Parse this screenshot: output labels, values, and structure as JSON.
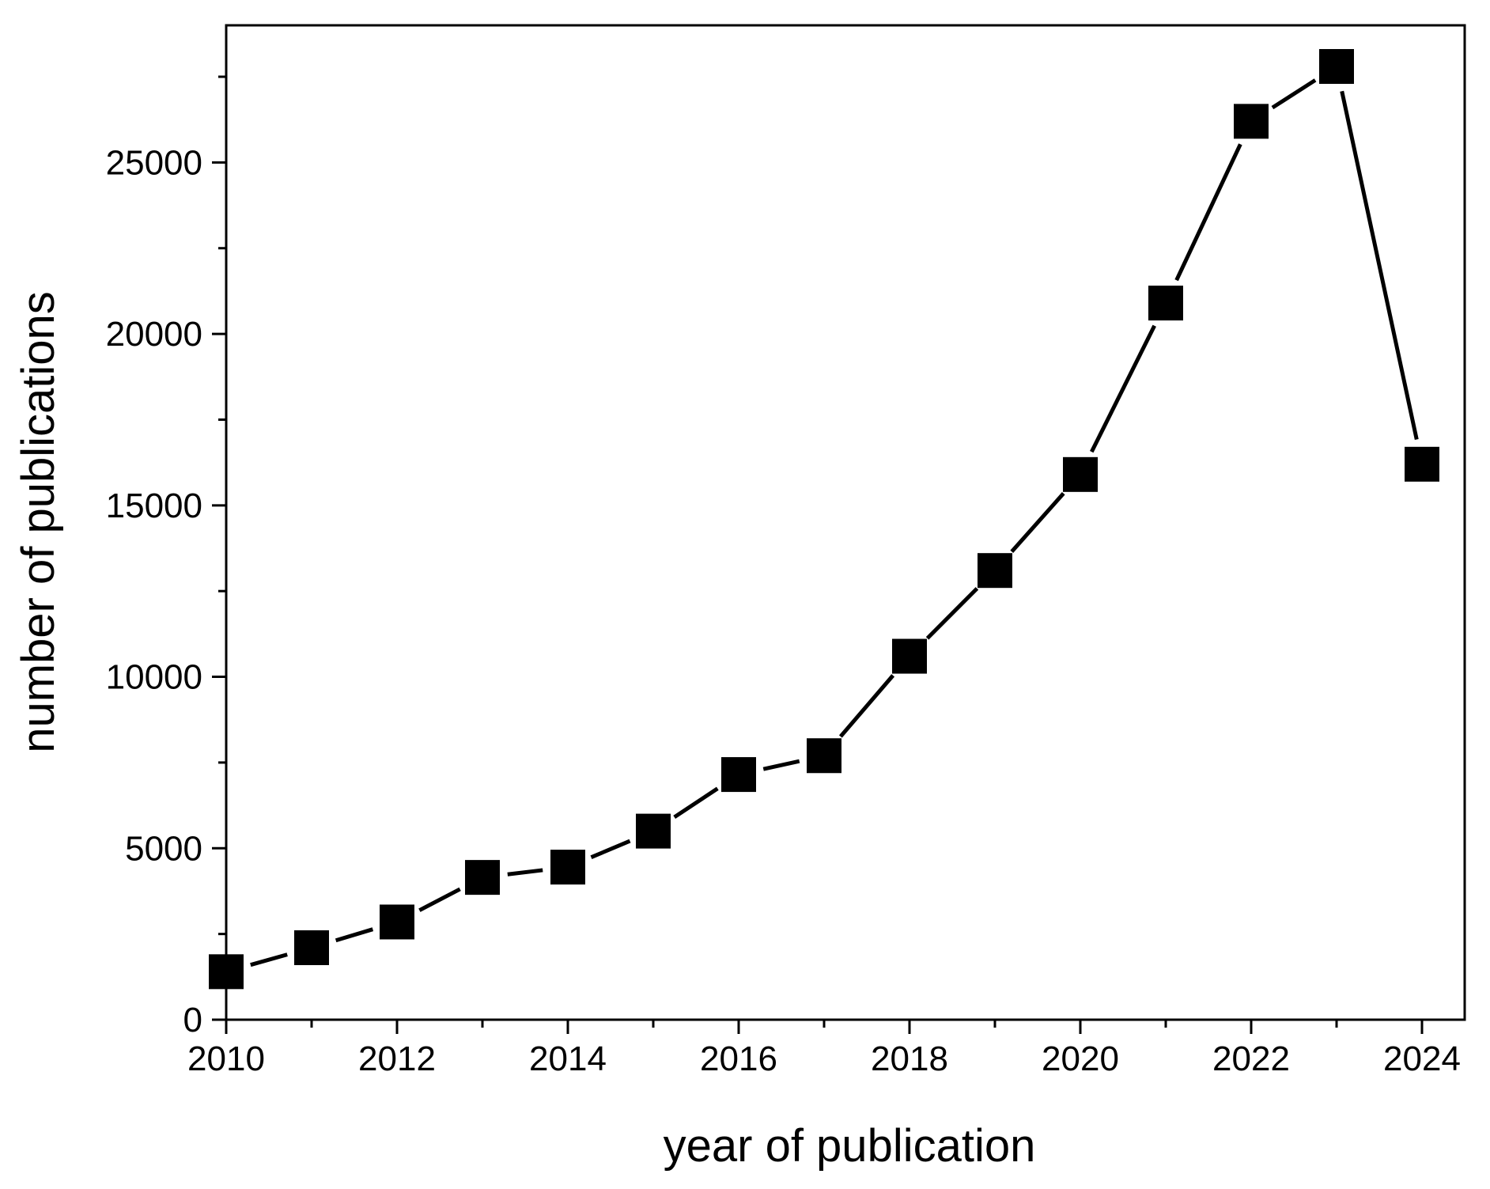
{
  "chart_data": {
    "type": "line",
    "xlabel": "year of publication",
    "ylabel": "number of publications",
    "xlim": [
      2010,
      2024.5
    ],
    "ylim": [
      0,
      29000
    ],
    "x_ticks": [
      2010,
      2012,
      2014,
      2016,
      2018,
      2020,
      2022,
      2024
    ],
    "x_tick_labels": [
      "2010",
      "2012",
      "2014",
      "2016",
      "2018",
      "2020",
      "2022",
      "2024"
    ],
    "y_ticks": [
      0,
      5000,
      10000,
      15000,
      20000,
      25000
    ],
    "y_tick_labels": [
      "0",
      "5000",
      "10000",
      "15000",
      "20000",
      "25000"
    ],
    "grid": false,
    "marker": "square",
    "color": "#000000",
    "series": [
      {
        "x": [
          2010,
          2011,
          2012,
          2013,
          2014,
          2015,
          2016,
          2017,
          2018,
          2019,
          2020,
          2021,
          2022,
          2023,
          2024
        ],
        "values": [
          1400,
          2100,
          2850,
          4150,
          4450,
          5500,
          7150,
          7700,
          10600,
          13100,
          15900,
          20900,
          26200,
          27800,
          16200
        ]
      }
    ]
  }
}
